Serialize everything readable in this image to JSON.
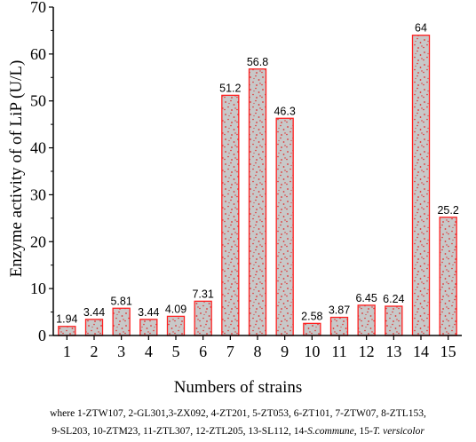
{
  "chart_data": {
    "type": "bar",
    "categories": [
      "1",
      "2",
      "3",
      "4",
      "5",
      "6",
      "7",
      "8",
      "9",
      "10",
      "11",
      "12",
      "13",
      "14",
      "15"
    ],
    "values": [
      1.94,
      3.44,
      5.81,
      3.44,
      4.09,
      7.31,
      51.2,
      56.8,
      46.3,
      2.58,
      3.87,
      6.45,
      6.24,
      64,
      25.2
    ],
    "data_labels": [
      "1.94",
      "3.44",
      "5.81",
      "3.44",
      "4.09",
      "7.31",
      "51.2",
      "56.8",
      "46.3",
      "2.58",
      "3.87",
      "6.45",
      "6.24",
      "64",
      "25.2"
    ],
    "title": "",
    "xlabel": "Numbers of strains",
    "ylabel": "Enzyme activity of of LiP (U/L)",
    "ylim": [
      0,
      70
    ],
    "yticks": [
      "0",
      "10",
      "20",
      "30",
      "40",
      "50",
      "60",
      "70"
    ],
    "grid": false,
    "colors": {
      "bar_fill": "#c8c8c8",
      "bar_edge": "#ff2020",
      "dots": "#e03030",
      "axis": "#000000"
    }
  },
  "footnote": {
    "line1": "where 1-ZTW107, 2-GL301,3-ZX092, 4-ZT201, 5-ZT053, 6-ZT101, 7-ZTW07, 8-ZTL153,",
    "line2_prefix": "9-SL203, 10-ZTM23, 11-ZTL307, 12-ZTL205, 13-SL112, 14-",
    "line2_species14": "S.commune",
    "line2_mid": ", 15-",
    "line2_species15": "T. versicolor"
  }
}
